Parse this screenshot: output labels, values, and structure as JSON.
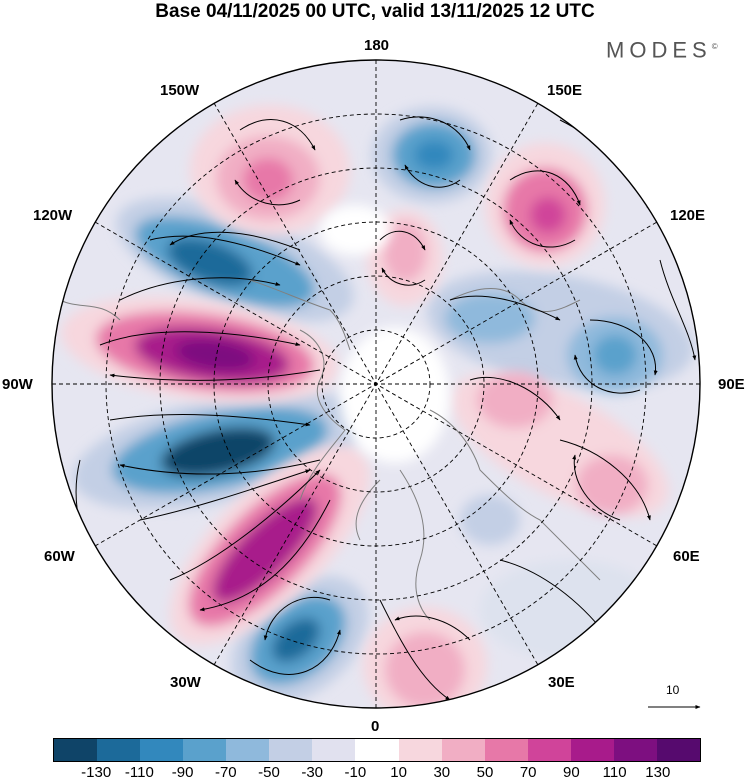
{
  "title": "Base 04/11/2025 00 UTC, valid 13/11/2025 12 UTC",
  "brand": "MODES",
  "brand_mark": "©",
  "longitude_labels": {
    "top": "180",
    "bottom": "0",
    "left": "90W",
    "right": "90E",
    "upper_left_1": "150W",
    "upper_left_2": "120W",
    "lower_left_1": "60W",
    "lower_left_2": "30W",
    "upper_right_1": "150E",
    "upper_right_2": "120E",
    "lower_right_1": "60E",
    "lower_right_2": "30E"
  },
  "reference_vector": "10",
  "colorbar": {
    "labels": [
      "-130",
      "-110",
      "-90",
      "-70",
      "-50",
      "-30",
      "-10",
      "10",
      "30",
      "50",
      "70",
      "90",
      "110",
      "130"
    ],
    "colors": [
      "#0f4468",
      "#1c6a9a",
      "#3288bd",
      "#5aa1cc",
      "#8fb9dc",
      "#c3cfe5",
      "#e1e1ef",
      "#ffffff",
      "#f7d7de",
      "#f1aec4",
      "#e778a8",
      "#d0449a",
      "#a81b8b",
      "#7d0f80",
      "#560a6e"
    ]
  },
  "colors": {
    "strong_negative": "#0f4468",
    "negative": "#5aa1cc",
    "weak_negative": "#c3cfe5",
    "weak_positive": "#f7d7de",
    "positive": "#e778a8",
    "strong_positive": "#7d0f80"
  }
}
